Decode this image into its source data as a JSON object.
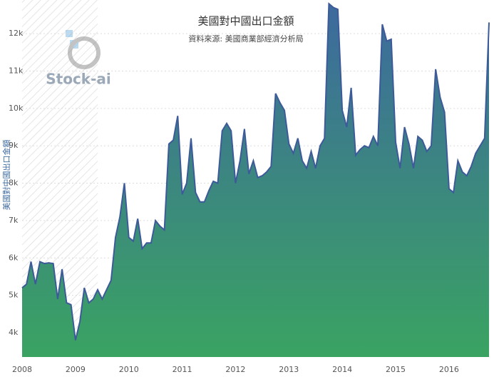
{
  "chart_data": {
    "type": "area",
    "title": "美國對中國出口金額",
    "subtitle": "資料來源: 美國商業部經濟分析局",
    "y_label": "美國對中國出口金額",
    "watermark": "Stock-ai",
    "categories": [
      "2008",
      null,
      null,
      null,
      null,
      null,
      null,
      null,
      null,
      null,
      null,
      null,
      "2009",
      null,
      null,
      null,
      null,
      null,
      null,
      null,
      null,
      null,
      null,
      null,
      "2010",
      null,
      null,
      null,
      null,
      null,
      null,
      null,
      null,
      null,
      null,
      null,
      "2011",
      null,
      null,
      null,
      null,
      null,
      null,
      null,
      null,
      null,
      null,
      null,
      "2012",
      null,
      null,
      null,
      null,
      null,
      null,
      null,
      null,
      null,
      null,
      null,
      "2013",
      null,
      null,
      null,
      null,
      null,
      null,
      null,
      null,
      null,
      null,
      null,
      "2014",
      null,
      null,
      null,
      null,
      null,
      null,
      null,
      null,
      null,
      null,
      null,
      "2015",
      null,
      null,
      null,
      null,
      null,
      null,
      null,
      null,
      null,
      null,
      null,
      "2016",
      null,
      null,
      null,
      null,
      null,
      null,
      null,
      null,
      null
    ],
    "values": [
      5200,
      5300,
      5900,
      5300,
      5900,
      5850,
      5870,
      5850,
      4900,
      5700,
      4800,
      4750,
      3800,
      4300,
      5200,
      4800,
      4900,
      5150,
      4900,
      5150,
      5400,
      6550,
      7100,
      8000,
      6550,
      6450,
      7050,
      6250,
      6400,
      6400,
      7000,
      6850,
      6750,
      9050,
      9150,
      9800,
      7700,
      8000,
      9200,
      7750,
      7500,
      7500,
      7800,
      8050,
      8000,
      9400,
      9600,
      9400,
      8000,
      8600,
      9450,
      8250,
      8600,
      8150,
      8200,
      8300,
      8450,
      10400,
      10150,
      9950,
      9050,
      8800,
      9200,
      8600,
      8400,
      8850,
      8400,
      9000,
      9200,
      12800,
      12700,
      12650,
      9950,
      9500,
      10550,
      8750,
      8900,
      9000,
      8950,
      9250,
      9000,
      12250,
      11800,
      11850,
      9100,
      8400,
      9500,
      9050,
      8400,
      9250,
      9150,
      8850,
      9000,
      11050,
      10300,
      9900,
      7850,
      7750,
      8600,
      8300,
      8200,
      8450,
      8800,
      9000,
      9200,
      12300
    ],
    "line_color": "#3d5a99",
    "fill_top": "#3d6a9e",
    "fill_bottom": "#3aa362",
    "ylim": [
      3350,
      12900
    ],
    "yticks": [
      {
        "value": 4000,
        "label": "4k"
      },
      {
        "value": 5000,
        "label": "5k"
      },
      {
        "value": 6000,
        "label": "6k"
      },
      {
        "value": 7000,
        "label": "7k"
      },
      {
        "value": 8000,
        "label": "8k"
      },
      {
        "value": 9000,
        "label": "9k"
      },
      {
        "value": 10000,
        "label": "10k"
      },
      {
        "value": 11000,
        "label": "11k"
      },
      {
        "value": 12000,
        "label": "12k"
      }
    ],
    "grid": true
  }
}
